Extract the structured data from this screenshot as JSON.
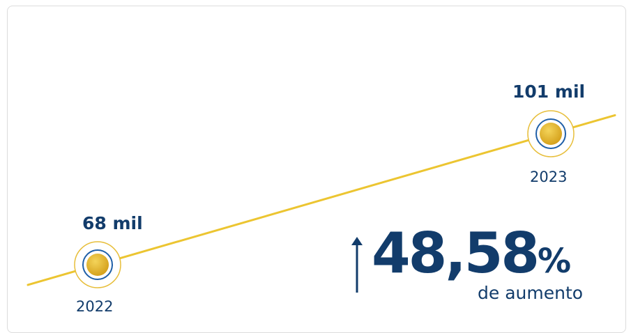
{
  "chart_data": {
    "type": "line",
    "categories": [
      "2022",
      "2023"
    ],
    "series": [
      {
        "values": [
          68,
          101
        ],
        "labels": [
          "68 mil",
          "101 mil"
        ]
      }
    ],
    "title": "",
    "xlabel": "",
    "ylabel": ""
  },
  "highlight": {
    "value": "48,58",
    "symbol": "%",
    "caption": "de aumento",
    "direction": "up"
  },
  "colors": {
    "line": "#ecc531",
    "marker_gold": "#d9a920",
    "marker_ring": "#1f5fa8",
    "text": "#123c6b"
  }
}
